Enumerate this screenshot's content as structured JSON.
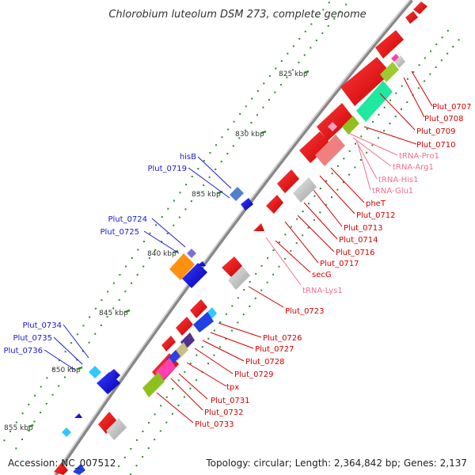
{
  "title": "Chlorobium luteolum DSM 273, complete genome",
  "accession": "Accession: NC_007512",
  "summary": "Topology: circular; Length: 2,364,842 bp; Genes: 2,137",
  "ticks": [
    "825 kbp",
    "830 kbp",
    "835 kbp",
    "840 kbp",
    "845 kbp",
    "850 kbp",
    "855 kbp"
  ],
  "labels_right": [
    "Plut_0707",
    "Plut_0708",
    "Plut_0709",
    "Plut_0710",
    "tRNA-Pro1",
    "tRNA-Arg1",
    "tRNA-His1",
    "tRNA-Glu1",
    "pheT",
    "Plut_0712",
    "Plut_0713",
    "Plut_0714",
    "Plut_0716",
    "Plut_0717",
    "secG",
    "tRNA-Lys1",
    "Plut_0723",
    "Plut_0726",
    "Plut_0727",
    "Plut_0728",
    "Plut_0729",
    "tpx",
    "Plut_0731",
    "Plut_0732",
    "Plut_0733"
  ],
  "labels_left": [
    "hisB",
    "Plut_0719",
    "Plut_0724",
    "Plut_0725",
    "Plut_0734",
    "Plut_0735",
    "Plut_0736"
  ],
  "colors": {
    "red": "#e00000",
    "blue": "#0000dd",
    "pink": "#f07090",
    "green_tick": "#2a8a2a",
    "backbone": "#888888"
  }
}
